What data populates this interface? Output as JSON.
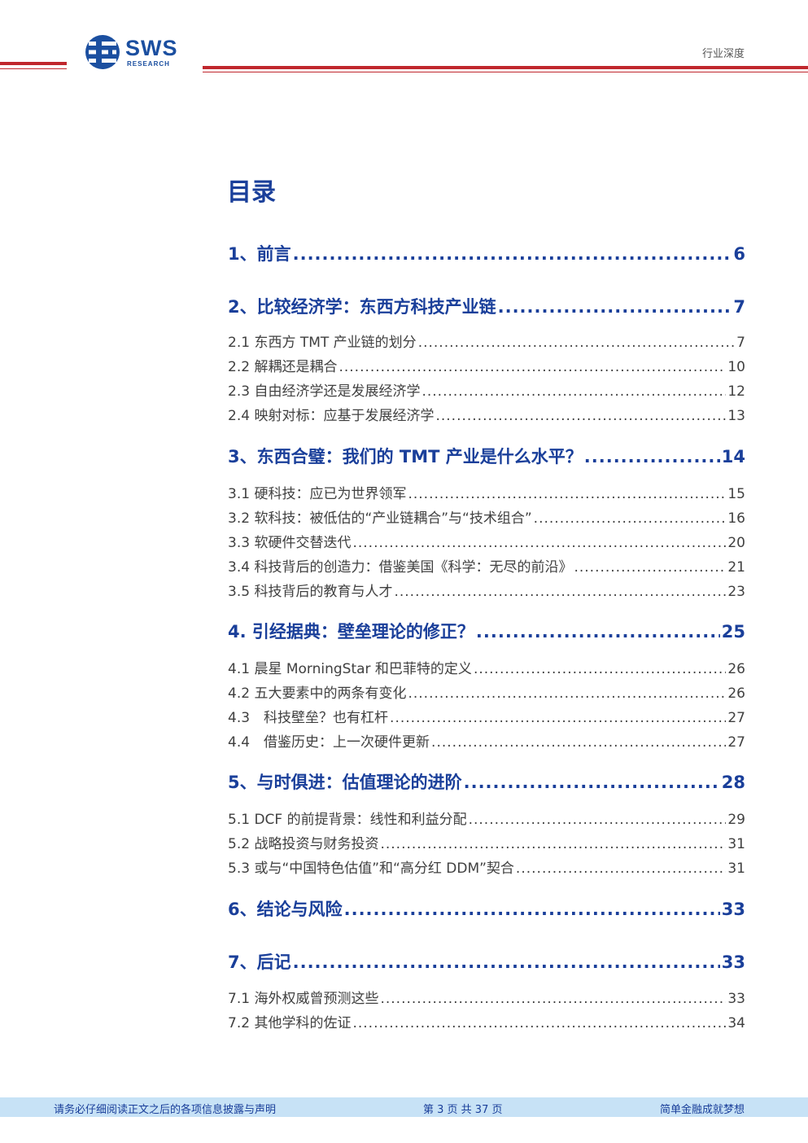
{
  "header": {
    "brand_name": "SWS",
    "brand_sub": "RESEARCH",
    "doc_type": "行业深度",
    "accent_color": "#c0272d",
    "brand_color": "#1b4fa0"
  },
  "toc": {
    "title": "目录",
    "entries": [
      {
        "label": "1、前言",
        "page": "6"
      },
      {
        "label": "2、比较经济学：东西方科技产业链",
        "page": "7"
      },
      {
        "label": "2.1 东西方 TMT 产业链的划分",
        "page": "7"
      },
      {
        "label": "2.2 解耦还是耦合",
        "page": "10"
      },
      {
        "label": "2.3 自由经济学还是发展经济学",
        "page": "12"
      },
      {
        "label": "2.4 映射对标：应基于发展经济学",
        "page": "13"
      },
      {
        "label": "3、东西合璧：我们的 TMT 产业是什么水平？",
        "page": "14"
      },
      {
        "label": "3.1 硬科技：应已为世界领军",
        "page": "15"
      },
      {
        "label": "3.2 软科技：被低估的“产业链耦合”与“技术组合”",
        "page": "16"
      },
      {
        "label": "3.3 软硬件交替迭代",
        "page": "20"
      },
      {
        "label": "3.4 科技背后的创造力：借鉴美国《科学：无尽的前沿》",
        "page": "21"
      },
      {
        "label": "3.5 科技背后的教育与人才",
        "page": "23"
      },
      {
        "label": "4. 引经据典：壁垒理论的修正？",
        "page": "25"
      },
      {
        "label": "4.1 晨星 MorningStar 和巴菲特的定义",
        "page": "26"
      },
      {
        "label": "4.2 五大要素中的两条有变化",
        "page": "26"
      },
      {
        "label": "4.3　科技壁垒？也有杠杆",
        "page": "27"
      },
      {
        "label": "4.4　借鉴历史：上一次硬件更新",
        "page": "27"
      },
      {
        "label": "5、与时俱进：估值理论的进阶",
        "page": "28"
      },
      {
        "label": "5.1 DCF 的前提背景：线性和利益分配",
        "page": "29"
      },
      {
        "label": "5.2 战略投资与财务投资",
        "page": "31"
      },
      {
        "label": "5.3 或与“中国特色估值”和“高分红 DDM”契合",
        "page": "31"
      },
      {
        "label": "6、结论与风险",
        "page": "33"
      },
      {
        "label": "7、后记",
        "page": "33"
      },
      {
        "label": "7.1 海外权威曾预测这些",
        "page": "33"
      },
      {
        "label": "7.2 其他学科的佐证",
        "page": "34"
      }
    ]
  },
  "footer": {
    "disclaimer": "请务必仔细阅读正文之后的各项信息披露与声明",
    "page_info": "第 3 页 共 37 页",
    "slogan": "简单金融成就梦想",
    "band_color": "#c7e2f6"
  }
}
